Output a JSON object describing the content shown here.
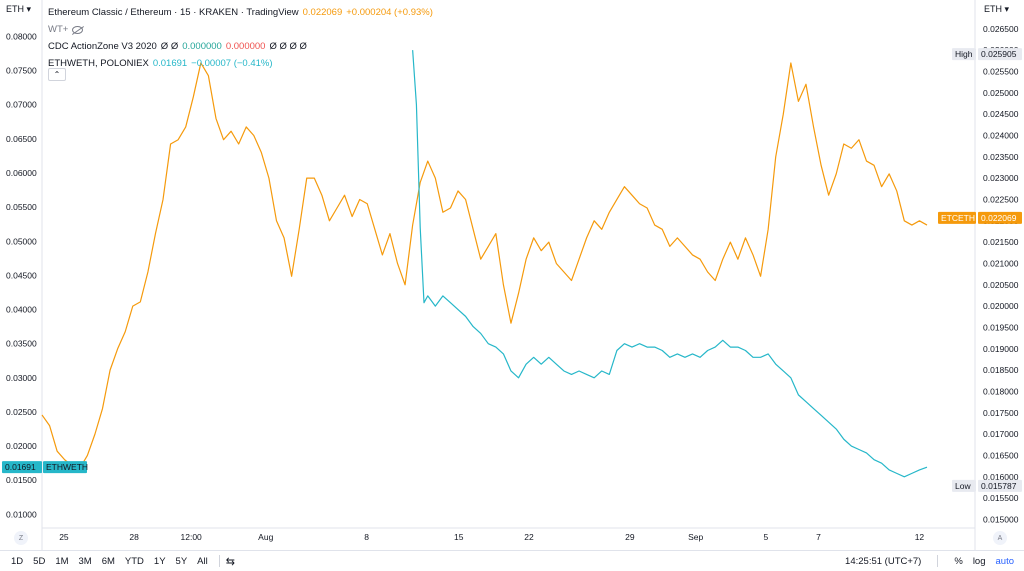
{
  "header": {
    "symbol_title": "Ethereum Classic / Ethereum · 15 · KRAKEN · TradingView",
    "price": "0.022069",
    "change": "+0.000204 (+0.93%)",
    "collapse_symbol": "⌃"
  },
  "legend": {
    "wt_label": "WT+",
    "indicator_name": "CDC ActionZone V3 2020",
    "indicator_prefix": "Ø Ø",
    "indicator_value_green": "0.000000",
    "indicator_value_red": "0.000000",
    "indicator_suffix": "Ø Ø Ø Ø",
    "compare_name": "ETHWETH, POLONIEX",
    "compare_value": "0.01691",
    "compare_change": "−0.00007 (−0.41%)"
  },
  "axes": {
    "left_unit": "ETH ▾",
    "right_unit": "ETH ▾",
    "left_ticks": [
      "0.08000",
      "0.07500",
      "0.07000",
      "0.06500",
      "0.06000",
      "0.05500",
      "0.05000",
      "0.04500",
      "0.04000",
      "0.03500",
      "0.03000",
      "0.02500",
      "0.02000",
      "0.01500",
      "0.01000"
    ],
    "right_ticks": [
      "0.026500",
      "0.026000",
      "0.025500",
      "0.025000",
      "0.024500",
      "0.024000",
      "0.023500",
      "0.023000",
      "0.022500",
      "0.022000",
      "0.021500",
      "0.021000",
      "0.020500",
      "0.020000",
      "0.019500",
      "0.019000",
      "0.018500",
      "0.018000",
      "0.017500",
      "0.017000",
      "0.016500",
      "0.016000",
      "0.015500",
      "0.015000"
    ],
    "x_ticks": [
      "25",
      "28",
      "12:00",
      "Aug",
      "8",
      "15",
      "22",
      "29",
      "Sep",
      "5",
      "7",
      "12"
    ],
    "corner_left": "Z",
    "corner_right": "A",
    "high_label": "High",
    "high_value": "0.025905",
    "low_label": "Low",
    "low_value": "0.015787",
    "etc_label": "ETCETH",
    "etc_value": "0.022069",
    "eth_label": "ETHWETH",
    "eth_value": "0.01691"
  },
  "bottom_bar": {
    "ranges": [
      "1D",
      "5D",
      "1M",
      "3M",
      "6M",
      "YTD",
      "1Y",
      "5Y",
      "All"
    ],
    "time": "14:25:51 (UTC+7)",
    "percent": "%",
    "log": "log",
    "auto": "auto"
  },
  "colors": {
    "etc_line": "#f59a0c",
    "eth_line": "#26b7c9",
    "grid": "#f0f3fa",
    "axis_text": "#131722"
  },
  "chart_data": {
    "type": "line",
    "x_ticks": [
      "25",
      "28",
      "12:00",
      "Aug",
      "8",
      "15",
      "22",
      "29",
      "Sep",
      "5",
      "7",
      "12"
    ],
    "series": [
      {
        "name": "ETCETH",
        "axis": "right",
        "values": [
          [
            0,
            0.01745
          ],
          [
            1,
            0.0172
          ],
          [
            2,
            0.0166
          ],
          [
            3,
            0.0164
          ],
          [
            4,
            0.01625
          ],
          [
            5,
            0.0162
          ],
          [
            6,
            0.0165
          ],
          [
            7,
            0.017
          ],
          [
            8,
            0.0176
          ],
          [
            9,
            0.0185
          ],
          [
            10,
            0.019
          ],
          [
            11,
            0.0194
          ],
          [
            12,
            0.02
          ],
          [
            13,
            0.0201
          ],
          [
            14,
            0.0208
          ],
          [
            15,
            0.0217
          ],
          [
            16,
            0.0225
          ],
          [
            17,
            0.0238
          ],
          [
            18,
            0.0239
          ],
          [
            19,
            0.0242
          ],
          [
            20,
            0.0249
          ],
          [
            21,
            0.0257
          ],
          [
            22,
            0.0254
          ],
          [
            23,
            0.0244
          ],
          [
            24,
            0.0239
          ],
          [
            25,
            0.0241
          ],
          [
            26,
            0.0238
          ],
          [
            27,
            0.0242
          ],
          [
            28,
            0.024
          ],
          [
            29,
            0.0236
          ],
          [
            30,
            0.023
          ],
          [
            31,
            0.022
          ],
          [
            32,
            0.0216
          ],
          [
            33,
            0.0207
          ],
          [
            34,
            0.0218
          ],
          [
            35,
            0.023
          ],
          [
            36,
            0.023
          ],
          [
            37,
            0.0226
          ],
          [
            38,
            0.022
          ],
          [
            39,
            0.0223
          ],
          [
            40,
            0.0226
          ],
          [
            41,
            0.0221
          ],
          [
            42,
            0.0225
          ],
          [
            43,
            0.0224
          ],
          [
            44,
            0.0218
          ],
          [
            45,
            0.0212
          ],
          [
            46,
            0.0217
          ],
          [
            47,
            0.021
          ],
          [
            48,
            0.0205
          ],
          [
            49,
            0.0219
          ],
          [
            50,
            0.0229
          ],
          [
            51,
            0.0234
          ],
          [
            52,
            0.023
          ],
          [
            53,
            0.0222
          ],
          [
            54,
            0.0223
          ],
          [
            55,
            0.0227
          ],
          [
            56,
            0.0225
          ],
          [
            57,
            0.0218
          ],
          [
            58,
            0.0211
          ],
          [
            59,
            0.0214
          ],
          [
            60,
            0.0217
          ],
          [
            61,
            0.0205
          ],
          [
            62,
            0.0196
          ],
          [
            63,
            0.0203
          ],
          [
            64,
            0.0211
          ],
          [
            65,
            0.0216
          ],
          [
            66,
            0.0213
          ],
          [
            67,
            0.0215
          ],
          [
            68,
            0.021
          ],
          [
            69,
            0.0208
          ],
          [
            70,
            0.0206
          ],
          [
            71,
            0.0211
          ],
          [
            72,
            0.0216
          ],
          [
            73,
            0.022
          ],
          [
            74,
            0.0218
          ],
          [
            75,
            0.0222
          ],
          [
            76,
            0.0225
          ],
          [
            77,
            0.0228
          ],
          [
            78,
            0.0226
          ],
          [
            79,
            0.0224
          ],
          [
            80,
            0.0223
          ],
          [
            81,
            0.0219
          ],
          [
            82,
            0.0218
          ],
          [
            83,
            0.0214
          ],
          [
            84,
            0.0216
          ],
          [
            85,
            0.0214
          ],
          [
            86,
            0.0212
          ],
          [
            87,
            0.0211
          ],
          [
            88,
            0.0208
          ],
          [
            89,
            0.0206
          ],
          [
            90,
            0.0211
          ],
          [
            91,
            0.0215
          ],
          [
            92,
            0.0211
          ],
          [
            93,
            0.0216
          ],
          [
            94,
            0.0212
          ],
          [
            95,
            0.0207
          ],
          [
            96,
            0.0218
          ],
          [
            97,
            0.0235
          ],
          [
            98,
            0.0245
          ],
          [
            99,
            0.0257
          ],
          [
            100,
            0.0248
          ],
          [
            101,
            0.0252
          ],
          [
            102,
            0.0242
          ],
          [
            103,
            0.0233
          ],
          [
            104,
            0.0226
          ],
          [
            105,
            0.0231
          ],
          [
            106,
            0.0238
          ],
          [
            107,
            0.0237
          ],
          [
            108,
            0.0239
          ],
          [
            109,
            0.0234
          ],
          [
            110,
            0.0233
          ],
          [
            111,
            0.0228
          ],
          [
            112,
            0.0231
          ],
          [
            113,
            0.0227
          ],
          [
            114,
            0.022
          ],
          [
            115,
            0.0219
          ],
          [
            116,
            0.022
          ],
          [
            117,
            0.0219
          ]
        ]
      },
      {
        "name": "ETHWETH",
        "axis": "left",
        "values": [
          [
            49,
            0.078
          ],
          [
            49.5,
            0.07
          ],
          [
            50,
            0.052
          ],
          [
            50.5,
            0.041
          ],
          [
            51,
            0.042
          ],
          [
            52,
            0.0405
          ],
          [
            53,
            0.042
          ],
          [
            54,
            0.041
          ],
          [
            55,
            0.04
          ],
          [
            56,
            0.039
          ],
          [
            57,
            0.0375
          ],
          [
            58,
            0.0365
          ],
          [
            59,
            0.035
          ],
          [
            60,
            0.0345
          ],
          [
            61,
            0.0335
          ],
          [
            62,
            0.031
          ],
          [
            63,
            0.03
          ],
          [
            64,
            0.032
          ],
          [
            65,
            0.033
          ],
          [
            66,
            0.032
          ],
          [
            67,
            0.033
          ],
          [
            68,
            0.032
          ],
          [
            69,
            0.031
          ],
          [
            70,
            0.0305
          ],
          [
            71,
            0.031
          ],
          [
            72,
            0.0305
          ],
          [
            73,
            0.03
          ],
          [
            74,
            0.031
          ],
          [
            75,
            0.0305
          ],
          [
            76,
            0.034
          ],
          [
            77,
            0.035
          ],
          [
            78,
            0.0345
          ],
          [
            79,
            0.035
          ],
          [
            80,
            0.0345
          ],
          [
            81,
            0.0345
          ],
          [
            82,
            0.034
          ],
          [
            83,
            0.033
          ],
          [
            84,
            0.0335
          ],
          [
            85,
            0.033
          ],
          [
            86,
            0.0335
          ],
          [
            87,
            0.033
          ],
          [
            88,
            0.034
          ],
          [
            89,
            0.0345
          ],
          [
            90,
            0.0355
          ],
          [
            91,
            0.0345
          ],
          [
            92,
            0.0345
          ],
          [
            93,
            0.034
          ],
          [
            94,
            0.033
          ],
          [
            95,
            0.033
          ],
          [
            96,
            0.0335
          ],
          [
            97,
            0.032
          ],
          [
            98,
            0.031
          ],
          [
            99,
            0.03
          ],
          [
            100,
            0.0275
          ],
          [
            101,
            0.0265
          ],
          [
            102,
            0.0255
          ],
          [
            103,
            0.0245
          ],
          [
            104,
            0.0235
          ],
          [
            105,
            0.0225
          ],
          [
            106,
            0.021
          ],
          [
            107,
            0.02
          ],
          [
            108,
            0.0195
          ],
          [
            109,
            0.019
          ],
          [
            110,
            0.018
          ],
          [
            111,
            0.0175
          ],
          [
            112,
            0.0165
          ],
          [
            113,
            0.016
          ],
          [
            114,
            0.0155
          ],
          [
            115,
            0.016
          ],
          [
            116,
            0.0165
          ],
          [
            117,
            0.0169
          ]
        ]
      }
    ],
    "x_range": [
      0,
      117
    ],
    "left_ylim": [
      0.008,
      0.083
    ],
    "right_ylim": [
      0.0148,
      0.0268
    ],
    "grid": true
  }
}
